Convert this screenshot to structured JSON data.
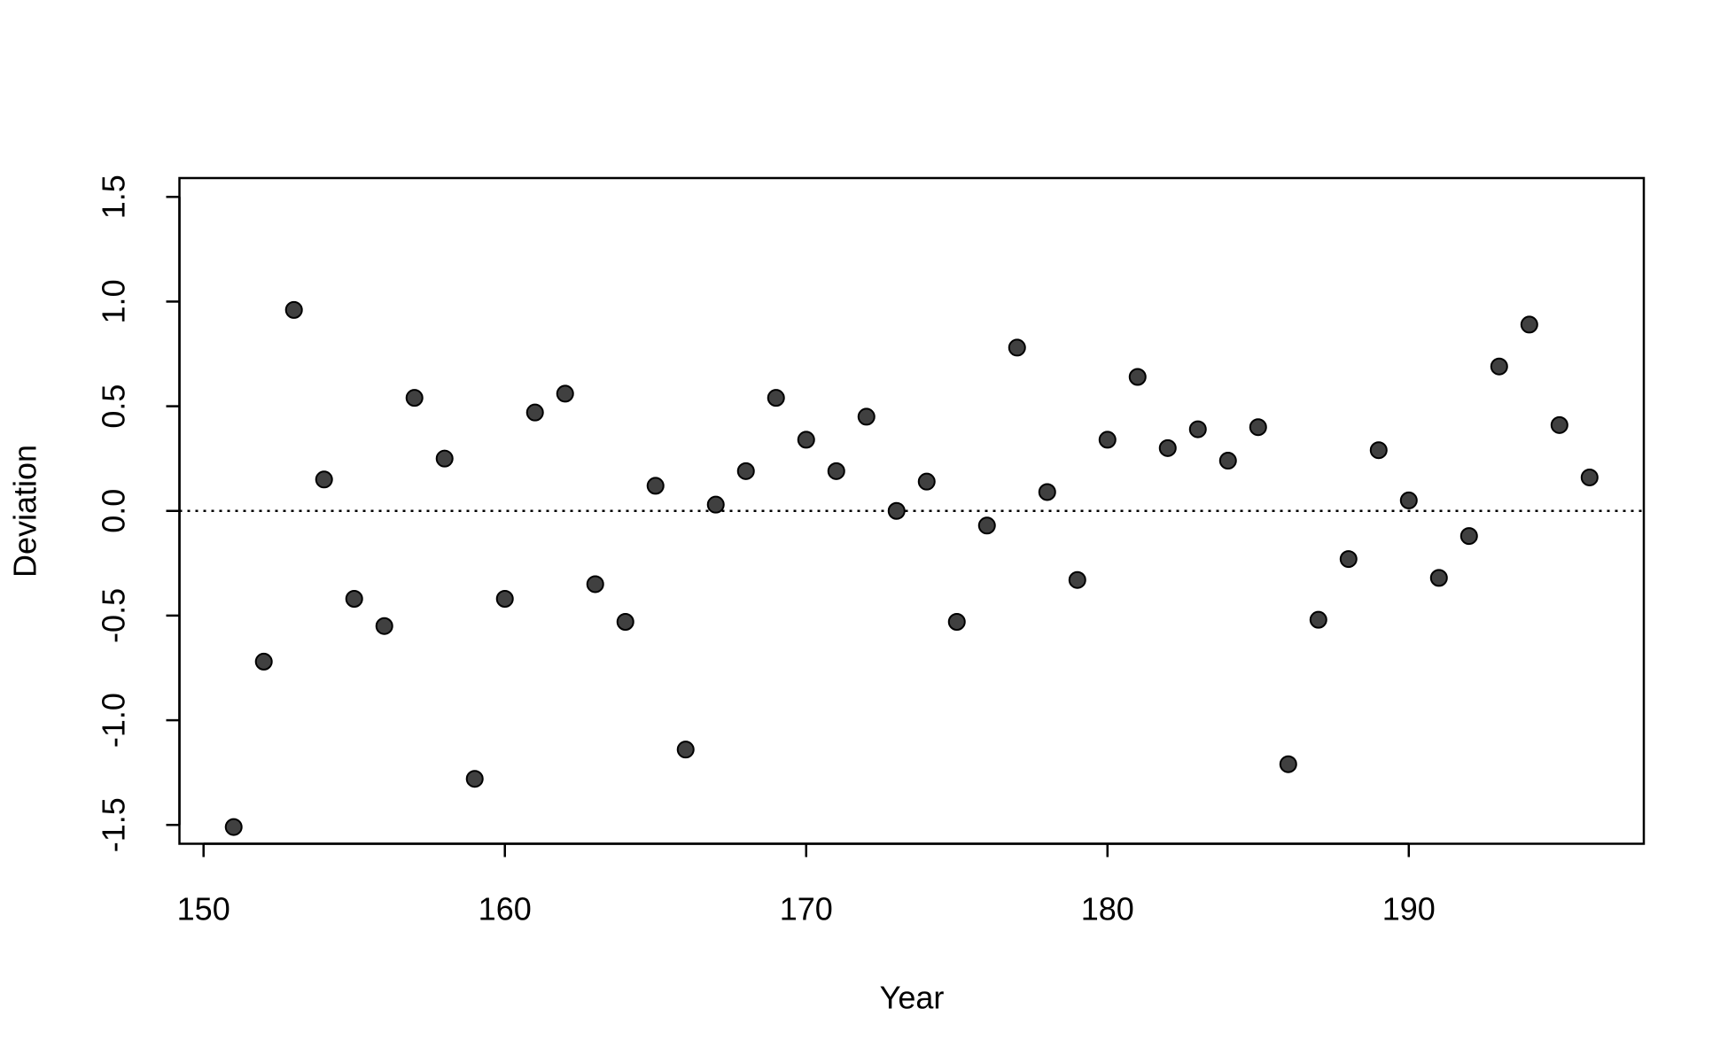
{
  "chart_data": {
    "type": "scatter",
    "x_label": "Year",
    "y_label": "Deviation",
    "x": [
      151,
      152,
      153,
      154,
      155,
      156,
      157,
      158,
      159,
      160,
      161,
      162,
      163,
      164,
      165,
      166,
      167,
      168,
      169,
      170,
      171,
      172,
      173,
      174,
      175,
      176,
      177,
      178,
      179,
      180,
      181,
      182,
      183,
      184,
      185,
      186,
      187,
      188,
      189,
      190,
      191,
      192,
      193,
      194,
      195,
      196
    ],
    "series": [
      {
        "name": "Deviation",
        "color": "#404040",
        "values": [
          -1.51,
          -0.72,
          0.96,
          0.15,
          -0.42,
          -0.55,
          0.54,
          0.25,
          -1.28,
          -0.42,
          0.47,
          0.56,
          -0.35,
          -0.53,
          0.12,
          -1.14,
          0.03,
          0.19,
          0.54,
          0.34,
          0.19,
          0.45,
          0.0,
          0.14,
          -0.53,
          -0.07,
          0.78,
          0.09,
          -0.33,
          0.34,
          0.64,
          0.3,
          0.39,
          0.24,
          0.4,
          -1.21,
          -0.52,
          -0.23,
          0.29,
          0.05,
          -0.32,
          -0.12,
          0.69,
          0.89,
          0.41,
          0.16
        ]
      }
    ],
    "xlim": [
      149.2,
      197.8
    ],
    "ylim": [
      -1.59,
      1.59
    ],
    "xticks": [
      150,
      160,
      170,
      180,
      190
    ],
    "yticks": [
      -1.5,
      {
        "value": -1.0,
        "label": "-1.0"
      },
      -0.5,
      {
        "value": 0.0,
        "label": "0.0"
      },
      0.5,
      {
        "value": 1.0,
        "label": "1.0"
      },
      1.5
    ],
    "reference_line": 0
  }
}
